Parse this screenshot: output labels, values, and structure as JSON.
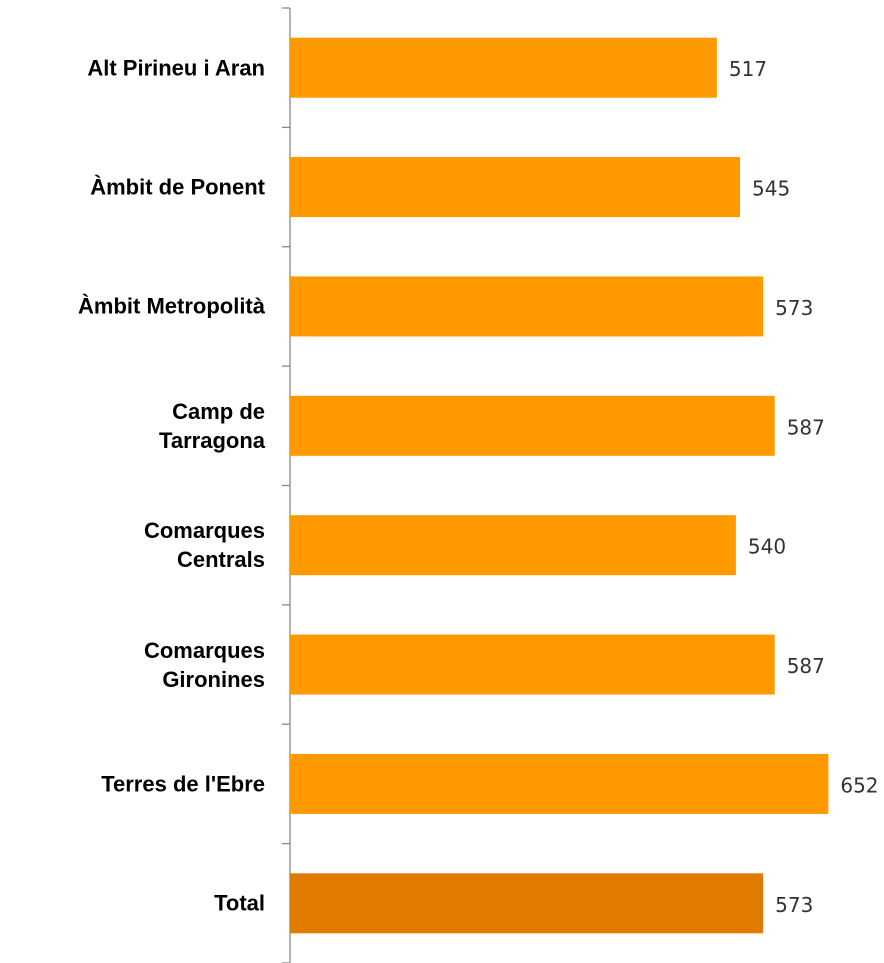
{
  "chart_data": {
    "type": "hbar",
    "categories": [
      "Alt Pirineu i Aran",
      "Àmbit de Ponent",
      "Àmbit Metropolità",
      "Camp de\nTarragona",
      "Comarques\nCentrals",
      "Comarques\nGironines",
      "Terres de l'Ebre",
      "Total"
    ],
    "values": [
      517,
      545,
      573,
      587,
      540,
      587,
      652,
      573
    ],
    "colors": [
      "#ff9900",
      "#ff9900",
      "#ff9900",
      "#ff9900",
      "#ff9900",
      "#ff9900",
      "#ff9900",
      "#e07b00"
    ],
    "xlim": [
      0,
      700
    ]
  }
}
